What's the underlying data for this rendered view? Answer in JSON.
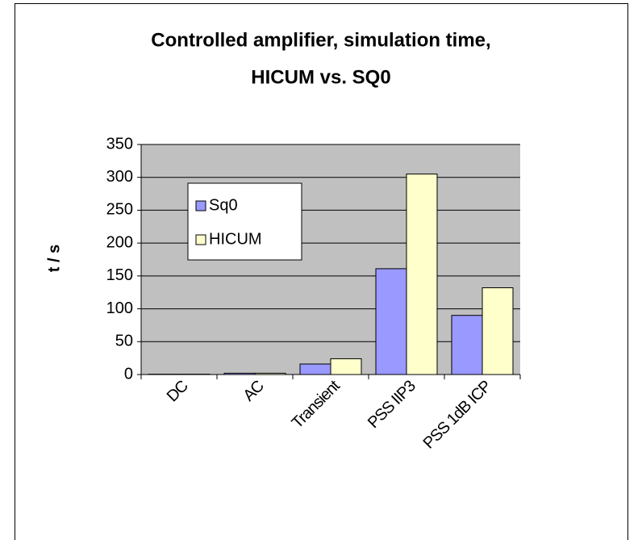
{
  "chart_data": {
    "type": "bar",
    "title": [
      "Controlled amplifier, simulation time,",
      "HICUM vs. SQ0"
    ],
    "y_label": "t / s",
    "categories": [
      "DC",
      "AC",
      "Transient",
      "PSS IIP3",
      "PSS 1dB ICP"
    ],
    "series": [
      {
        "name": "Sq0",
        "color": "#9999ff",
        "values": [
          0.5,
          2,
          16,
          161,
          90
        ]
      },
      {
        "name": "HICUM",
        "color": "#ffffcc",
        "values": [
          0.5,
          2,
          24,
          305,
          132
        ]
      }
    ],
    "ylim": [
      0,
      350
    ],
    "yticks": [
      0,
      50,
      100,
      150,
      200,
      250,
      300,
      350
    ],
    "grid": true,
    "legend": "upper left"
  }
}
